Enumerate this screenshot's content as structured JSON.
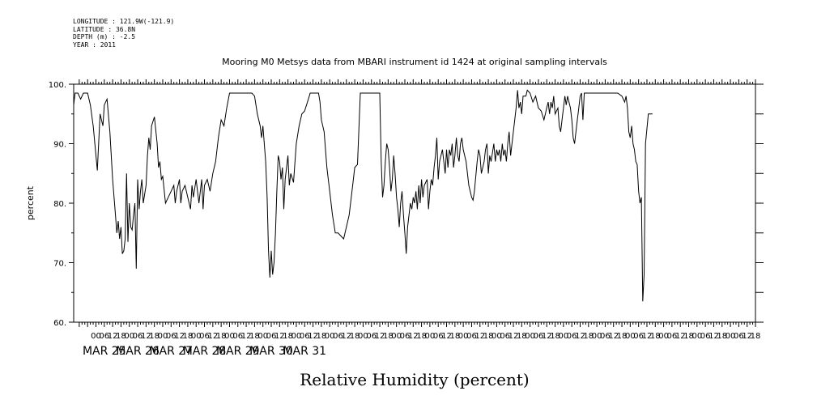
{
  "meta": {
    "longitude": "LONGITUDE : 121.9W(-121.9)",
    "latitude": "LATITUDE : 36.8N",
    "depth": "DEPTH (m) : -2.5",
    "year": "YEAR : 2011"
  },
  "chart_data": {
    "type": "line",
    "title": "Mooring M0 Metsys data from MBARI instrument id 1424 at original sampling intervals",
    "xlabel": "Relative Humidity (percent)",
    "ylabel": "percent",
    "ylim": [
      60,
      100
    ],
    "yticks": [
      60,
      70,
      80,
      90,
      100
    ],
    "ytick_labels": [
      "60.",
      "70.",
      "80.",
      "90.",
      "100."
    ],
    "xlim_hours": [
      -16,
      474
    ],
    "hour_ticks": [
      "00",
      "06",
      "12",
      "18"
    ],
    "day_labels": [
      "MAR 25",
      "MAR 26",
      "MAR 27",
      "MAR 28",
      "MAR 29",
      "MAR 30",
      "MAR 31"
    ],
    "grid": false,
    "series": [
      {
        "values": [
          [
            -16,
            96.5
          ],
          [
            -15,
            98.5
          ],
          [
            -13,
            98.5
          ],
          [
            -11,
            97.5
          ],
          [
            -9,
            98.5
          ],
          [
            -6,
            98.5
          ],
          [
            -4,
            96.5
          ],
          [
            -2,
            93
          ],
          [
            0,
            88
          ],
          [
            1,
            85.5
          ],
          [
            3,
            95
          ],
          [
            5,
            93
          ],
          [
            6,
            96.5
          ],
          [
            8,
            97.5
          ],
          [
            10,
            92
          ],
          [
            12,
            84
          ],
          [
            14,
            78
          ],
          [
            15,
            75
          ],
          [
            16,
            77
          ],
          [
            17,
            74
          ],
          [
            18,
            76
          ],
          [
            19,
            71.5
          ],
          [
            20,
            72
          ],
          [
            21,
            74
          ],
          [
            22,
            85
          ],
          [
            23,
            73.5
          ],
          [
            24,
            80
          ],
          [
            25,
            76
          ],
          [
            26,
            75.5
          ],
          [
            27,
            78
          ],
          [
            28,
            80
          ],
          [
            29,
            69
          ],
          [
            30,
            84
          ],
          [
            31,
            79
          ],
          [
            32,
            82
          ],
          [
            33,
            84
          ],
          [
            34,
            80
          ],
          [
            36,
            83
          ],
          [
            37,
            88
          ],
          [
            38,
            91
          ],
          [
            39,
            89
          ],
          [
            40,
            93
          ],
          [
            42,
            94.5
          ],
          [
            44,
            90
          ],
          [
            45,
            86
          ],
          [
            46,
            87
          ],
          [
            47,
            84
          ],
          [
            48,
            84.5
          ],
          [
            50,
            80
          ],
          [
            52,
            81
          ],
          [
            54,
            82
          ],
          [
            56,
            83
          ],
          [
            57,
            80
          ],
          [
            58,
            82
          ],
          [
            60,
            84
          ],
          [
            61,
            80
          ],
          [
            62,
            82
          ],
          [
            64,
            83
          ],
          [
            66,
            81
          ],
          [
            68,
            79
          ],
          [
            69,
            83
          ],
          [
            70,
            81
          ],
          [
            72,
            84
          ],
          [
            74,
            80
          ],
          [
            76,
            84
          ],
          [
            77,
            79
          ],
          [
            78,
            83
          ],
          [
            80,
            84
          ],
          [
            82,
            82
          ],
          [
            84,
            85
          ],
          [
            86,
            87
          ],
          [
            88,
            91
          ],
          [
            90,
            94
          ],
          [
            92,
            93
          ],
          [
            94,
            96
          ],
          [
            96,
            98.5
          ],
          [
            100,
            98.5
          ],
          [
            104,
            98.5
          ],
          [
            108,
            98.5
          ],
          [
            112,
            98.5
          ],
          [
            114,
            98
          ],
          [
            116,
            95
          ],
          [
            118,
            93
          ],
          [
            119,
            91
          ],
          [
            120,
            93
          ],
          [
            122,
            87
          ],
          [
            123,
            81
          ],
          [
            124,
            72
          ],
          [
            125,
            67.5
          ],
          [
            126,
            72
          ],
          [
            127,
            68
          ],
          [
            128,
            70
          ],
          [
            129,
            75
          ],
          [
            130,
            82
          ],
          [
            131,
            88
          ],
          [
            132,
            87
          ],
          [
            133,
            84
          ],
          [
            134,
            86
          ],
          [
            135,
            79
          ],
          [
            136,
            84
          ],
          [
            137,
            86
          ],
          [
            138,
            88
          ],
          [
            139,
            83
          ],
          [
            140,
            85
          ],
          [
            142,
            83.5
          ],
          [
            144,
            90
          ],
          [
            146,
            93
          ],
          [
            148,
            95
          ],
          [
            150,
            95.5
          ],
          [
            152,
            97
          ],
          [
            154,
            98.5
          ],
          [
            160,
            98.5
          ],
          [
            161,
            97
          ],
          [
            162,
            94
          ],
          [
            164,
            92
          ],
          [
            166,
            86
          ],
          [
            168,
            82
          ],
          [
            170,
            78
          ],
          [
            172,
            75
          ],
          [
            174,
            75
          ],
          [
            176,
            74.5
          ],
          [
            178,
            74
          ],
          [
            180,
            76
          ],
          [
            182,
            78
          ],
          [
            184,
            82
          ],
          [
            186,
            86
          ],
          [
            188,
            86.5
          ],
          [
            190,
            98.5
          ],
          [
            204,
            98.5
          ],
          [
            205,
            87
          ],
          [
            206,
            81
          ],
          [
            207,
            83
          ],
          [
            208,
            87
          ],
          [
            209,
            90
          ],
          [
            210,
            89
          ],
          [
            211,
            86
          ],
          [
            212,
            82
          ],
          [
            213,
            84
          ],
          [
            214,
            88
          ],
          [
            215,
            85
          ],
          [
            216,
            81
          ],
          [
            217,
            79
          ],
          [
            218,
            76
          ],
          [
            219,
            80
          ],
          [
            220,
            82
          ],
          [
            221,
            78
          ],
          [
            222,
            75
          ],
          [
            223,
            71.5
          ],
          [
            224,
            76
          ],
          [
            225,
            78
          ],
          [
            226,
            80
          ],
          [
            227,
            79
          ],
          [
            228,
            81
          ],
          [
            229,
            80
          ],
          [
            230,
            82
          ],
          [
            231,
            79
          ],
          [
            232,
            83
          ],
          [
            233,
            80
          ],
          [
            234,
            84
          ],
          [
            235,
            81
          ],
          [
            236,
            83
          ],
          [
            238,
            84
          ],
          [
            239,
            79
          ],
          [
            240,
            82
          ],
          [
            241,
            84
          ],
          [
            242,
            83
          ],
          [
            243,
            86
          ],
          [
            244,
            88
          ],
          [
            245,
            91
          ],
          [
            246,
            84
          ],
          [
            247,
            87
          ],
          [
            248,
            88
          ],
          [
            249,
            89
          ],
          [
            250,
            87
          ],
          [
            251,
            85
          ],
          [
            252,
            89
          ],
          [
            253,
            86
          ],
          [
            254,
            89
          ],
          [
            255,
            88
          ],
          [
            256,
            90
          ],
          [
            257,
            86
          ],
          [
            258,
            88
          ],
          [
            259,
            91
          ],
          [
            260,
            88
          ],
          [
            261,
            87
          ],
          [
            262,
            90
          ],
          [
            263,
            91
          ],
          [
            264,
            89
          ],
          [
            266,
            87
          ],
          [
            267,
            85
          ],
          [
            268,
            83
          ],
          [
            269,
            82
          ],
          [
            270,
            81
          ],
          [
            271,
            80.5
          ],
          [
            272,
            82
          ],
          [
            274,
            87
          ],
          [
            275,
            89
          ],
          [
            276,
            88
          ],
          [
            277,
            85
          ],
          [
            278,
            86
          ],
          [
            279,
            87
          ],
          [
            280,
            89
          ],
          [
            281,
            90
          ],
          [
            282,
            85
          ],
          [
            283,
            88
          ],
          [
            284,
            87
          ],
          [
            286,
            90
          ],
          [
            287,
            87
          ],
          [
            288,
            89
          ],
          [
            289,
            88
          ],
          [
            290,
            89
          ],
          [
            291,
            87
          ],
          [
            292,
            90
          ],
          [
            293,
            88
          ],
          [
            294,
            89
          ],
          [
            295,
            87
          ],
          [
            296,
            90
          ],
          [
            297,
            92
          ],
          [
            298,
            88
          ],
          [
            299,
            90
          ],
          [
            300,
            92
          ],
          [
            301,
            94
          ],
          [
            302,
            96
          ],
          [
            303,
            99
          ],
          [
            304,
            96
          ],
          [
            305,
            97
          ],
          [
            306,
            95
          ],
          [
            307,
            98
          ],
          [
            309,
            98
          ],
          [
            310,
            99
          ],
          [
            312,
            98.5
          ],
          [
            314,
            97
          ],
          [
            316,
            98
          ],
          [
            318,
            96
          ],
          [
            320,
            95.5
          ],
          [
            322,
            94
          ],
          [
            324,
            96
          ],
          [
            325,
            97
          ],
          [
            326,
            95
          ],
          [
            327,
            97
          ],
          [
            328,
            96
          ],
          [
            329,
            98
          ],
          [
            330,
            95
          ],
          [
            332,
            96
          ],
          [
            333,
            93
          ],
          [
            334,
            92
          ],
          [
            335,
            94
          ],
          [
            336,
            96
          ],
          [
            337,
            98
          ],
          [
            338,
            96.5
          ],
          [
            339,
            98
          ],
          [
            340,
            97
          ],
          [
            341,
            96
          ],
          [
            342,
            94
          ],
          [
            343,
            91
          ],
          [
            344,
            90
          ],
          [
            345,
            92
          ],
          [
            346,
            94
          ],
          [
            347,
            96
          ],
          [
            348,
            98
          ],
          [
            349,
            98.5
          ],
          [
            350,
            94
          ],
          [
            351,
            98.5
          ],
          [
            355,
            98.5
          ],
          [
            360,
            98.5
          ],
          [
            366,
            98.5
          ],
          [
            370,
            98.5
          ],
          [
            375,
            98.5
          ],
          [
            378,
            98
          ],
          [
            380,
            97
          ],
          [
            381,
            98
          ],
          [
            382,
            96
          ],
          [
            383,
            92
          ],
          [
            384,
            91
          ],
          [
            385,
            93
          ],
          [
            386,
            90
          ],
          [
            387,
            89
          ],
          [
            388,
            87
          ],
          [
            389,
            86.5
          ],
          [
            390,
            82
          ],
          [
            391,
            80
          ],
          [
            392,
            81
          ],
          [
            393,
            63.5
          ],
          [
            394,
            68
          ],
          [
            395,
            90
          ],
          [
            397,
            95
          ],
          [
            400,
            95
          ]
        ]
      }
    ]
  }
}
